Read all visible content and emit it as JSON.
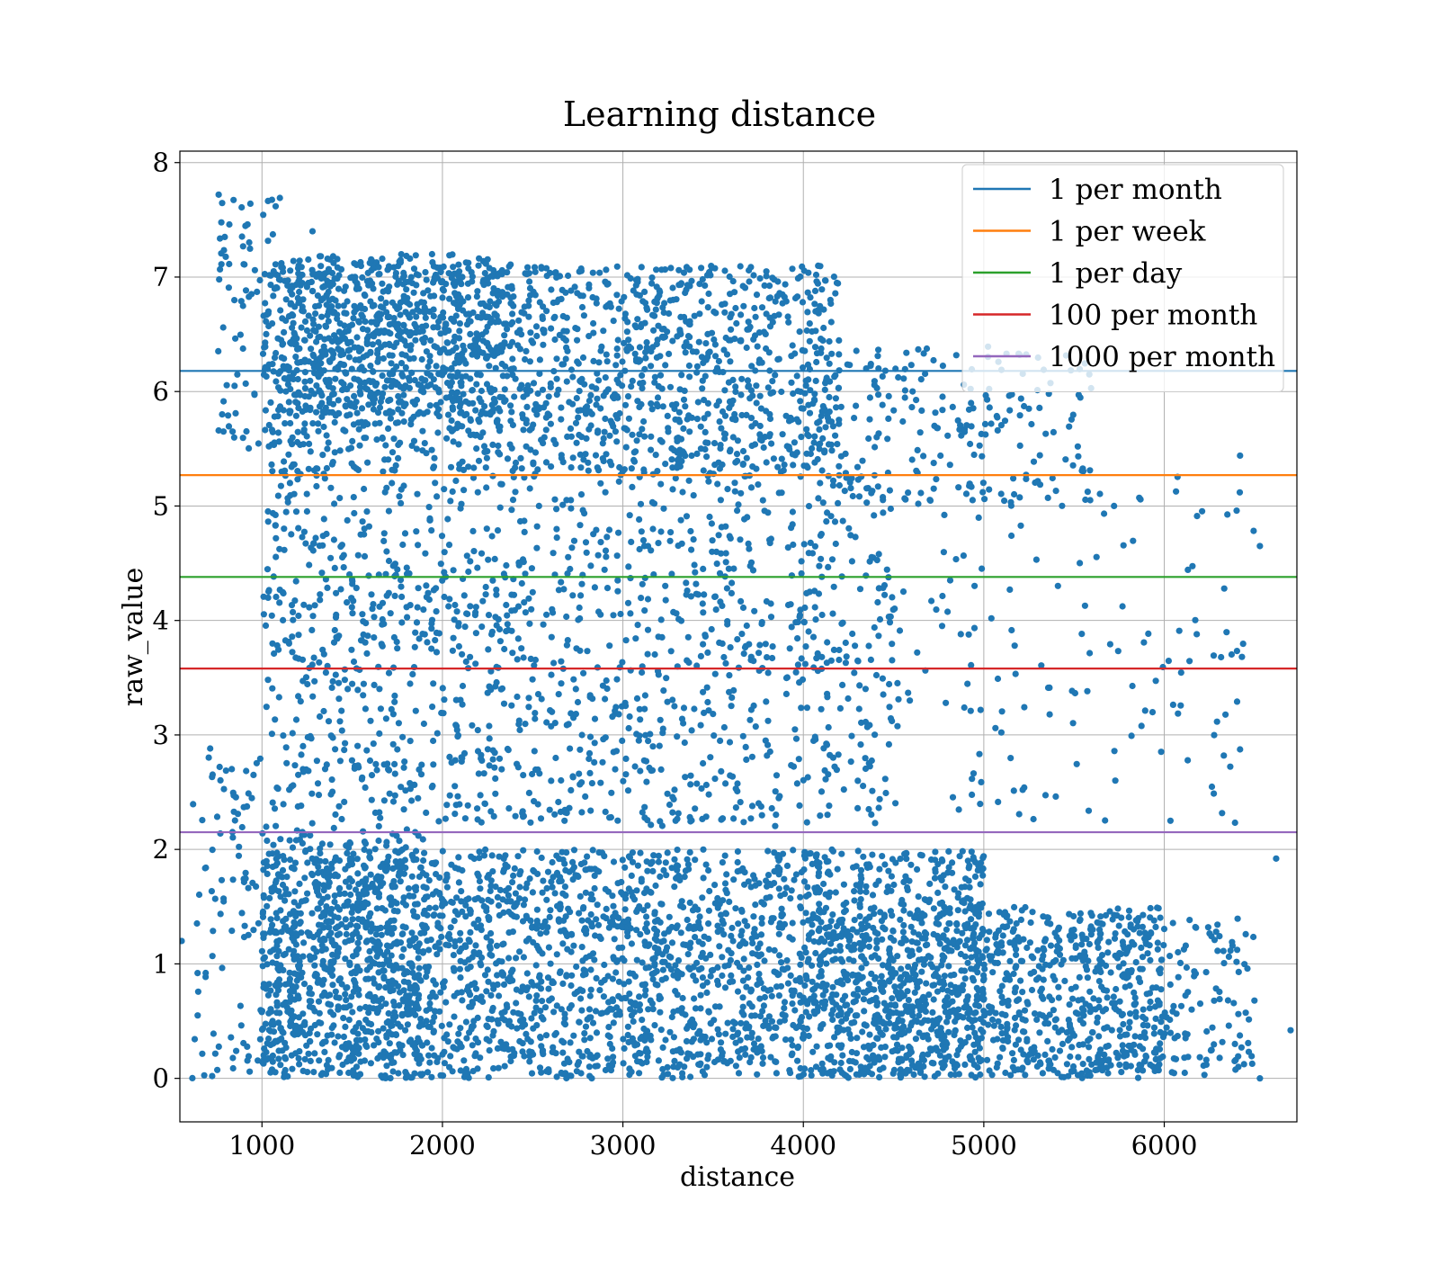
{
  "chart_data": {
    "type": "scatter",
    "title": "Learning distance",
    "xlabel": "distance",
    "ylabel": "raw_value",
    "xlim": [
      545,
      6735
    ],
    "ylim": [
      -0.38,
      8.1
    ],
    "x_ticks": [
      1000,
      2000,
      3000,
      4000,
      5000,
      6000
    ],
    "y_ticks": [
      0,
      1,
      2,
      3,
      4,
      5,
      6,
      7,
      8
    ],
    "grid": true,
    "legend_position": "top-right",
    "point_color": "#1f77b4",
    "reference_lines": [
      {
        "name": "1 per month",
        "y": 6.18,
        "color": "#1f77b4"
      },
      {
        "name": "1 per week",
        "y": 5.27,
        "color": "#ff7f0e"
      },
      {
        "name": "1 per day",
        "y": 4.38,
        "color": "#2ca02c"
      },
      {
        "name": "100 per month",
        "y": 3.58,
        "color": "#d62728"
      },
      {
        "name": "1000 per month",
        "y": 2.15,
        "color": "#9467bd"
      }
    ],
    "point_regions": [
      {
        "x_range": [
          1000,
          5000
        ],
        "y_range": [
          0.0,
          2.0
        ],
        "n": 2600,
        "note": "dense band"
      },
      {
        "x_range": [
          1000,
          1900
        ],
        "y_range": [
          0.0,
          2.2
        ],
        "n": 400
      },
      {
        "x_range": [
          4000,
          6000
        ],
        "y_range": [
          0.0,
          1.5
        ],
        "n": 700
      },
      {
        "x_range": [
          5000,
          6500
        ],
        "y_range": [
          0.0,
          1.4
        ],
        "n": 300
      },
      {
        "x_range": [
          600,
          1000
        ],
        "y_range": [
          0.0,
          2.9
        ],
        "n": 90
      },
      {
        "x_range": [
          1000,
          4200
        ],
        "y_range": [
          5.3,
          7.1
        ],
        "n": 1500
      },
      {
        "x_range": [
          1100,
          2400
        ],
        "y_range": [
          5.8,
          7.2
        ],
        "n": 500
      },
      {
        "x_range": [
          750,
          1100
        ],
        "y_range": [
          5.5,
          7.7
        ],
        "n": 80
      },
      {
        "x_range": [
          4000,
          5600
        ],
        "y_range": [
          5.0,
          6.4
        ],
        "n": 220
      },
      {
        "x_range": [
          1000,
          4500
        ],
        "y_range": [
          2.2,
          5.3
        ],
        "n": 1300
      },
      {
        "x_range": [
          4500,
          6500
        ],
        "y_range": [
          2.2,
          5.3
        ],
        "n": 150
      }
    ],
    "sample_points": [
      {
        "x": 760,
        "y": 7.72
      },
      {
        "x": 920,
        "y": 7.46
      },
      {
        "x": 1280,
        "y": 7.4
      },
      {
        "x": 2200,
        "y": 7.1
      },
      {
        "x": 4150,
        "y": 6.8
      },
      {
        "x": 6420,
        "y": 5.44
      },
      {
        "x": 6530,
        "y": 4.65
      },
      {
        "x": 6180,
        "y": 3.88
      },
      {
        "x": 6330,
        "y": 2.82
      },
      {
        "x": 555,
        "y": 1.2
      },
      {
        "x": 6700,
        "y": 0.42
      },
      {
        "x": 6620,
        "y": 1.92
      },
      {
        "x": 6530,
        "y": 0.0
      }
    ]
  }
}
